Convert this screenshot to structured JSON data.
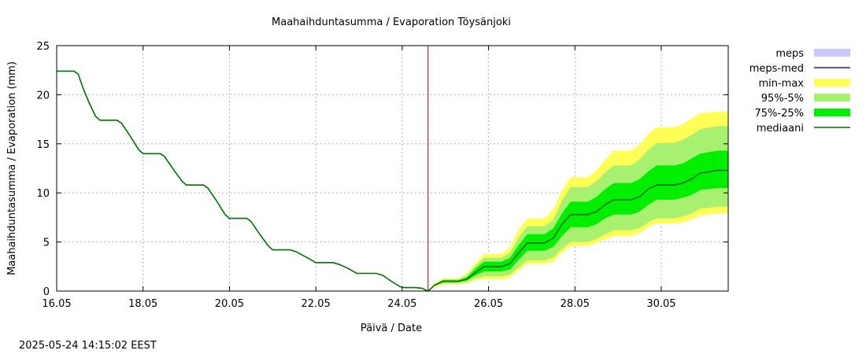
{
  "chart_data": {
    "type": "area",
    "title": "Maahaihduntasumma / Evaporation   Töysänjoki",
    "xlabel": "Päivä / Date",
    "ylabel": "Maahaihduntasumma / Evaporation (mm)",
    "footer": "2025-05-24 14:15:02 EEST",
    "x_range_days": [
      16.0,
      31.55
    ],
    "ylim": [
      0,
      25
    ],
    "y_ticks": [
      0,
      5,
      10,
      15,
      20,
      25
    ],
    "x_ticks": [
      {
        "day": 16,
        "label": "16.05"
      },
      {
        "day": 18,
        "label": "18.05"
      },
      {
        "day": 20,
        "label": "20.05"
      },
      {
        "day": 22,
        "label": "22.05"
      },
      {
        "day": 24,
        "label": "24.05"
      },
      {
        "day": 26,
        "label": "26.05"
      },
      {
        "day": 28,
        "label": "28.05"
      },
      {
        "day": 30,
        "label": "30.05"
      }
    ],
    "grid": true,
    "forecast_start_day": 24.6,
    "legend_position": "right",
    "legend": [
      {
        "key": "meps",
        "label": "meps",
        "color": "#c8c8ff",
        "kind": "box"
      },
      {
        "key": "meps_med",
        "label": "meps-med",
        "color": "#2020a0",
        "kind": "line"
      },
      {
        "key": "minmax",
        "label": "min-max",
        "color": "#ffff55",
        "kind": "box"
      },
      {
        "key": "p95_5",
        "label": "95%-5%",
        "color": "#a8f070",
        "kind": "box"
      },
      {
        "key": "p75_25",
        "label": "75%-25%",
        "color": "#00ee00",
        "kind": "box"
      },
      {
        "key": "median",
        "label": "mediaani",
        "color": "#007000",
        "kind": "line"
      }
    ],
    "observed": {
      "x": [
        16.0,
        16.4,
        16.5,
        16.6,
        16.75,
        16.9,
        17.0,
        17.4,
        17.5,
        17.7,
        17.9,
        18.0,
        18.4,
        18.5,
        18.7,
        18.9,
        19.0,
        19.4,
        19.5,
        19.7,
        19.9,
        20.0,
        20.4,
        20.5,
        20.7,
        20.9,
        21.0,
        21.4,
        21.55,
        21.8,
        22.0,
        22.4,
        22.55,
        22.75,
        22.95,
        23.4,
        23.55,
        23.75,
        23.95,
        24.05,
        24.3,
        24.45,
        24.6
      ],
      "y": [
        22.4,
        22.4,
        22.1,
        20.8,
        19.2,
        17.8,
        17.4,
        17.4,
        17.1,
        15.8,
        14.4,
        14.0,
        14.0,
        13.7,
        12.4,
        11.2,
        10.8,
        10.8,
        10.5,
        9.2,
        7.8,
        7.4,
        7.4,
        7.1,
        5.8,
        4.6,
        4.2,
        4.2,
        4.0,
        3.4,
        2.9,
        2.9,
        2.7,
        2.3,
        1.8,
        1.8,
        1.6,
        1.0,
        0.45,
        0.35,
        0.35,
        0.3,
        0.0
      ]
    },
    "forecast": {
      "x": [
        24.6,
        24.75,
        24.95,
        25.3,
        25.5,
        25.7,
        25.9,
        26.3,
        26.5,
        26.7,
        26.9,
        27.3,
        27.5,
        27.7,
        27.9,
        28.3,
        28.5,
        28.7,
        28.9,
        29.3,
        29.5,
        29.7,
        29.9,
        30.3,
        30.5,
        30.7,
        30.9,
        31.3,
        31.55
      ],
      "median": [
        0.0,
        0.6,
        1.0,
        1.0,
        1.2,
        1.9,
        2.5,
        2.5,
        2.8,
        3.9,
        4.9,
        4.9,
        5.4,
        6.8,
        7.8,
        7.8,
        8.1,
        8.8,
        9.3,
        9.3,
        9.6,
        10.4,
        10.8,
        10.8,
        11.0,
        11.4,
        12.0,
        12.3,
        12.3
      ],
      "p25": [
        0.0,
        0.55,
        0.9,
        0.9,
        1.1,
        1.6,
        2.0,
        2.0,
        2.2,
        3.2,
        4.1,
        4.1,
        4.5,
        5.6,
        6.5,
        6.5,
        6.8,
        7.4,
        7.8,
        7.8,
        8.1,
        8.8,
        9.3,
        9.3,
        9.5,
        9.8,
        10.3,
        10.5,
        10.5
      ],
      "p75": [
        0.0,
        0.65,
        1.1,
        1.1,
        1.4,
        2.3,
        3.0,
        3.0,
        3.4,
        4.7,
        5.8,
        5.8,
        6.4,
        7.9,
        9.1,
        9.1,
        9.6,
        10.4,
        11.0,
        11.0,
        11.4,
        12.2,
        12.8,
        12.8,
        13.0,
        13.5,
        14.0,
        14.3,
        14.3
      ],
      "p5": [
        0.0,
        0.5,
        0.8,
        0.8,
        0.9,
        1.3,
        1.5,
        1.5,
        1.7,
        2.4,
        3.1,
        3.1,
        3.4,
        4.3,
        5.0,
        5.0,
        5.3,
        5.8,
        6.2,
        6.2,
        6.4,
        7.0,
        7.4,
        7.4,
        7.6,
        7.9,
        8.4,
        8.6,
        8.6
      ],
      "p95": [
        0.0,
        0.7,
        1.2,
        1.2,
        1.6,
        2.6,
        3.4,
        3.4,
        3.9,
        5.5,
        6.6,
        6.6,
        7.3,
        9.2,
        10.6,
        10.6,
        11.2,
        12.1,
        12.8,
        12.8,
        13.4,
        14.4,
        15.1,
        15.1,
        15.4,
        15.9,
        16.5,
        16.8,
        16.8
      ],
      "min": [
        0.0,
        0.45,
        0.7,
        0.7,
        0.8,
        1.1,
        1.2,
        1.2,
        1.4,
        2.1,
        2.8,
        2.8,
        3.0,
        3.9,
        4.6,
        4.6,
        4.9,
        5.3,
        5.6,
        5.6,
        5.9,
        6.5,
        6.9,
        6.9,
        7.0,
        7.3,
        7.7,
        7.9,
        7.9
      ],
      "max": [
        0.0,
        0.8,
        1.3,
        1.3,
        1.8,
        2.9,
        3.8,
        3.8,
        4.5,
        6.3,
        7.4,
        7.4,
        8.3,
        10.3,
        11.6,
        11.6,
        12.3,
        13.4,
        14.3,
        14.3,
        14.9,
        16.0,
        16.7,
        16.7,
        17.0,
        17.6,
        18.1,
        18.3,
        18.3
      ]
    }
  }
}
